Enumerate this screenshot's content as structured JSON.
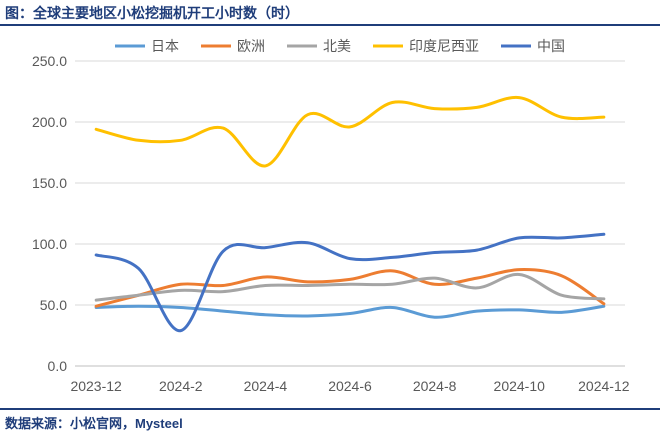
{
  "header": {
    "title": "图：全球主要地区小松挖掘机开工小时数（时）"
  },
  "footer": {
    "source": "数据来源：小松官网，Mysteel"
  },
  "chart_data": {
    "type": "line",
    "title": "",
    "xlabel": "",
    "ylabel": "",
    "ylim": [
      0,
      250
    ],
    "yticks": [
      "0.0",
      "50.0",
      "100.0",
      "150.0",
      "200.0",
      "250.0"
    ],
    "x": [
      "2023-12",
      "2024-1",
      "2024-2",
      "2024-3",
      "2024-4",
      "2024-5",
      "2024-6",
      "2024-7",
      "2024-8",
      "2024-9",
      "2024-10",
      "2024-11",
      "2024-12"
    ],
    "xticks": [
      "2023-12",
      "2024-2",
      "2024-4",
      "2024-6",
      "2024-8",
      "2024-10",
      "2024-12"
    ],
    "grid": true,
    "legend_position": "top",
    "series": [
      {
        "name": "日本",
        "color": "#5b9bd5",
        "values": [
          48,
          49,
          48,
          45,
          42,
          41,
          43,
          48,
          40,
          45,
          46,
          44,
          49
        ]
      },
      {
        "name": "欧洲",
        "color": "#ed7d31",
        "values": [
          49,
          58,
          67,
          66,
          73,
          69,
          71,
          78,
          67,
          72,
          79,
          74,
          51
        ]
      },
      {
        "name": "北美",
        "color": "#a5a5a5",
        "values": [
          54,
          58,
          62,
          61,
          66,
          66,
          67,
          67,
          72,
          64,
          75,
          58,
          55
        ]
      },
      {
        "name": "印度尼西亚",
        "color": "#ffc000",
        "values": [
          194,
          185,
          185,
          195,
          164,
          206,
          196,
          216,
          211,
          212,
          220,
          204,
          204
        ]
      },
      {
        "name": "中国",
        "color": "#4472c4",
        "values": [
          91,
          80,
          29,
          94,
          97,
          101,
          88,
          89,
          93,
          95,
          105,
          105,
          108
        ]
      }
    ]
  }
}
